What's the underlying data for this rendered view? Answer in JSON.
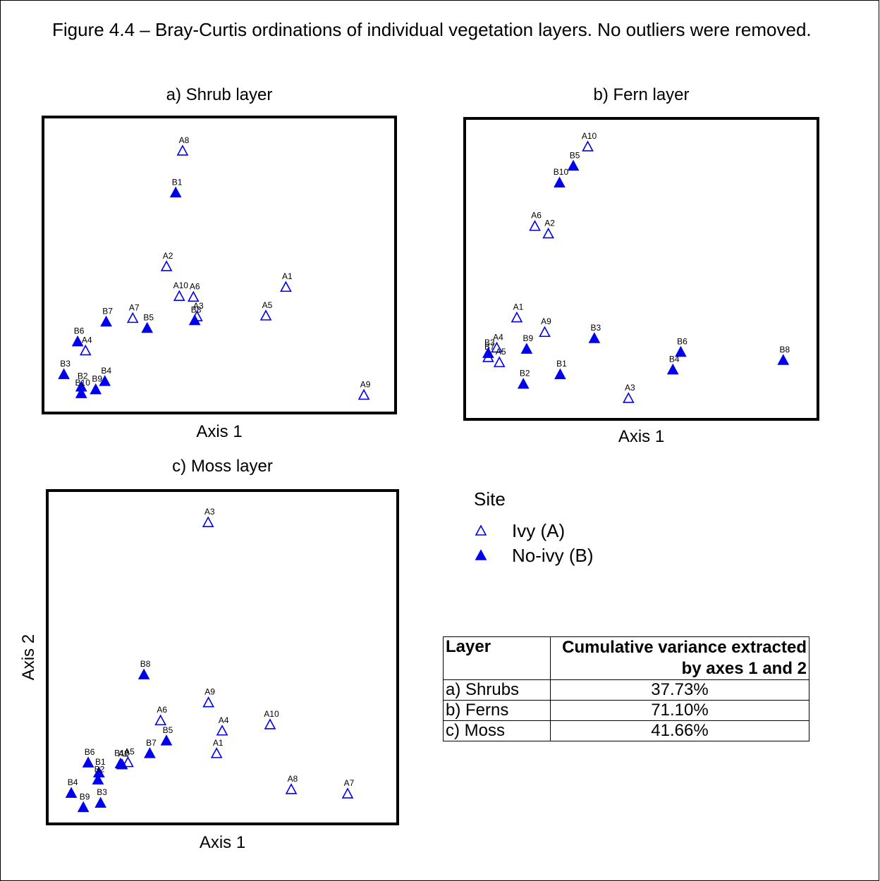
{
  "caption": "Figure 4.4 – Bray-Curtis ordinations of individual vegetation layers. No outliers were removed.",
  "colors": {
    "marker": "#0000ee",
    "frame": "#000000"
  },
  "legend": {
    "title": "Site",
    "items": [
      {
        "label": "Ivy (A)",
        "marker": "open-triangle"
      },
      {
        "label": "No-ivy (B)",
        "marker": "filled-triangle"
      }
    ]
  },
  "variance_table": {
    "headers": [
      "Layer",
      "Cumulative variance extracted by axes 1 and 2"
    ],
    "rows": [
      [
        "a) Shrubs",
        "37.73%"
      ],
      [
        "b) Ferns",
        "71.10%"
      ],
      [
        "c) Moss",
        "41.66%"
      ]
    ]
  },
  "chart_data": [
    {
      "type": "scatter",
      "title": "a) Shrub layer",
      "xlabel": "Axis 1",
      "ylabel": "",
      "xlim": [
        0,
        100
      ],
      "ylim": [
        0,
        100
      ],
      "series": [
        {
          "name": "Ivy (A)",
          "marker": "open-triangle",
          "points": [
            {
              "label": "A8",
              "x": 38.8,
              "y": 91.5
            },
            {
              "label": "A2",
              "x": 33.9,
              "y": 49.5
            },
            {
              "label": "A1",
              "x": 70.3,
              "y": 42.0
            },
            {
              "label": "A10",
              "x": 37.8,
              "y": 38.7
            },
            {
              "label": "A6",
              "x": 42.1,
              "y": 38.4
            },
            {
              "label": "A3",
              "x": 43.2,
              "y": 31.3
            },
            {
              "label": "A7",
              "x": 23.6,
              "y": 30.7
            },
            {
              "label": "A5",
              "x": 64.2,
              "y": 31.6
            },
            {
              "label": "A4",
              "x": 9.2,
              "y": 18.9
            },
            {
              "label": "A9",
              "x": 94.1,
              "y": 2.8
            }
          ]
        },
        {
          "name": "No-ivy (B)",
          "marker": "filled-triangle",
          "points": [
            {
              "label": "B1",
              "x": 36.7,
              "y": 76.3
            },
            {
              "label": "B8",
              "x": 42.5,
              "y": 29.9
            },
            {
              "label": "B7",
              "x": 15.5,
              "y": 29.4
            },
            {
              "label": "B5",
              "x": 28.0,
              "y": 27.1
            },
            {
              "label": "B6",
              "x": 6.8,
              "y": 22.2
            },
            {
              "label": "B3",
              "x": 2.6,
              "y": 10.3
            },
            {
              "label": "B4",
              "x": 15.1,
              "y": 7.8
            },
            {
              "label": "B2",
              "x": 7.9,
              "y": 5.8
            },
            {
              "label": "B10",
              "x": 7.9,
              "y": 3.4
            },
            {
              "label": "B9",
              "x": 12.3,
              "y": 4.8
            }
          ]
        }
      ]
    },
    {
      "type": "scatter",
      "title": "b) Fern layer",
      "xlabel": "Axis 1",
      "ylabel": "",
      "xlim": [
        0,
        100
      ],
      "ylim": [
        0,
        100
      ],
      "series": [
        {
          "name": "Ivy (A)",
          "marker": "open-triangle",
          "points": [
            {
              "label": "A10",
              "x": 33.7,
              "y": 93.7
            },
            {
              "label": "A6",
              "x": 17.6,
              "y": 65.3
            },
            {
              "label": "A2",
              "x": 21.7,
              "y": 62.6
            },
            {
              "label": "A1",
              "x": 12.1,
              "y": 32.6
            },
            {
              "label": "A9",
              "x": 20.6,
              "y": 27.4
            },
            {
              "label": "A4",
              "x": 6.0,
              "y": 21.8
            },
            {
              "label": "A5",
              "x": 6.8,
              "y": 16.6
            },
            {
              "label": "B7",
              "x": 3.4,
              "y": 18.4
            },
            {
              "label": "A3",
              "x": 46.1,
              "y": 3.8
            }
          ]
        },
        {
          "name": "No-ivy (B)",
          "marker": "filled-triangle",
          "points": [
            {
              "label": "B5",
              "x": 29.3,
              "y": 86.8
            },
            {
              "label": "B10",
              "x": 25.1,
              "y": 80.8
            },
            {
              "label": "B3",
              "x": 35.7,
              "y": 25.2
            },
            {
              "label": "B9",
              "x": 15.1,
              "y": 21.4
            },
            {
              "label": "B6",
              "x": 62.0,
              "y": 20.3
            },
            {
              "label": "B8",
              "x": 93.2,
              "y": 17.4
            },
            {
              "label": "B4",
              "x": 59.6,
              "y": 14.0
            },
            {
              "label": "B1",
              "x": 25.3,
              "y": 12.3
            },
            {
              "label": "B2",
              "x": 14.1,
              "y": 8.9
            },
            {
              "label": "B3",
              "x": 3.4,
              "y": 19.9
            }
          ]
        }
      ]
    },
    {
      "type": "scatter",
      "title": "c) Moss layer",
      "xlabel": "Axis 1",
      "ylabel": "Axis 2",
      "xlim": [
        0,
        100
      ],
      "ylim": [
        0,
        100
      ],
      "series": [
        {
          "name": "Ivy (A)",
          "marker": "open-triangle",
          "points": [
            {
              "label": "A3",
              "x": 45.6,
              "y": 93.5
            },
            {
              "label": "A9",
              "x": 45.7,
              "y": 35.4
            },
            {
              "label": "A10",
              "x": 64.6,
              "y": 28.3
            },
            {
              "label": "A6",
              "x": 31.0,
              "y": 29.6
            },
            {
              "label": "A4",
              "x": 49.9,
              "y": 26.3
            },
            {
              "label": "A1",
              "x": 48.2,
              "y": 19.0
            },
            {
              "label": "A5",
              "x": 21.0,
              "y": 16.1
            },
            {
              "label": "A2",
              "x": 19.2,
              "y": 15.4
            },
            {
              "label": "A8",
              "x": 71.1,
              "y": 7.4
            },
            {
              "label": "A7",
              "x": 88.4,
              "y": 6.0
            }
          ]
        },
        {
          "name": "No-ivy (B)",
          "marker": "filled-triangle",
          "points": [
            {
              "label": "B8",
              "x": 25.9,
              "y": 44.4
            },
            {
              "label": "B5",
              "x": 32.8,
              "y": 23.1
            },
            {
              "label": "B7",
              "x": 27.7,
              "y": 19.0
            },
            {
              "label": "B6",
              "x": 8.8,
              "y": 16.0
            },
            {
              "label": "B10",
              "x": 18.7,
              "y": 15.7
            },
            {
              "label": "B1",
              "x": 12.1,
              "y": 12.8
            },
            {
              "label": "B2",
              "x": 11.8,
              "y": 10.5
            },
            {
              "label": "B4",
              "x": 3.6,
              "y": 6.2
            },
            {
              "label": "B3",
              "x": 12.6,
              "y": 3.0
            },
            {
              "label": "B9",
              "x": 7.3,
              "y": 1.6
            }
          ]
        }
      ]
    }
  ]
}
